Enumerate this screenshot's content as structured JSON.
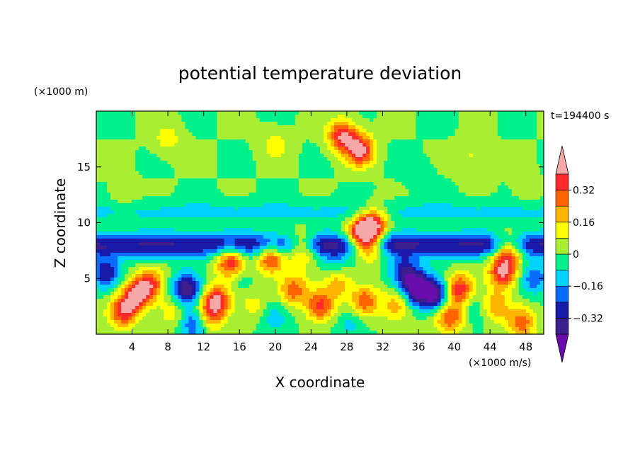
{
  "chart_data": {
    "type": "heatmap",
    "title": "potential temperature deviation",
    "xlabel": "X coordinate",
    "ylabel": "Z coordinate",
    "x_unit": "(×1000 m/s)",
    "y_unit": "(×1000 m)",
    "time_label": "t=194400 s",
    "xlim": [
      0,
      50
    ],
    "ylim": [
      0,
      20
    ],
    "x_ticks": [
      4,
      8,
      12,
      16,
      20,
      24,
      28,
      32,
      36,
      40,
      44,
      48
    ],
    "y_ticks": [
      5,
      10,
      15
    ],
    "colorbar": {
      "levels": [
        -0.4,
        -0.32,
        -0.24,
        -0.16,
        -0.08,
        0,
        0.08,
        0.16,
        0.24,
        0.32,
        0.4
      ],
      "labels": [
        "0.32",
        "0.16",
        "0",
        "-0.16",
        "-0.32"
      ],
      "label_values": [
        0.32,
        0.16,
        0,
        -0.16,
        -0.32
      ],
      "colors": [
        "#6a0dad",
        "#3c1e8c",
        "#1a1aa8",
        "#0a6cff",
        "#00d2ff",
        "#00f08c",
        "#a8ee32",
        "#ffff00",
        "#ffb400",
        "#ff6400",
        "#ff2a2a",
        "#f5a8a8"
      ],
      "extend": "both"
    },
    "anomalies": [
      {
        "x": 4.5,
        "z": 3.5,
        "v": 0.4
      },
      {
        "x": 3.0,
        "z": 2.0,
        "v": 0.35
      },
      {
        "x": 6.0,
        "z": 4.5,
        "v": 0.3
      },
      {
        "x": 13.5,
        "z": 3.0,
        "v": 0.42
      },
      {
        "x": 15.0,
        "z": 6.5,
        "v": 0.4
      },
      {
        "x": 12.5,
        "z": 1.5,
        "v": 0.25
      },
      {
        "x": 19.5,
        "z": 6.8,
        "v": 0.38
      },
      {
        "x": 23.0,
        "z": 7.8,
        "v": 0.35
      },
      {
        "x": 22.0,
        "z": 4.0,
        "v": 0.3
      },
      {
        "x": 25.0,
        "z": 2.5,
        "v": 0.36
      },
      {
        "x": 27.0,
        "z": 4.5,
        "v": 0.2
      },
      {
        "x": 30.5,
        "z": 8.0,
        "v": 0.42
      },
      {
        "x": 31.0,
        "z": 10.0,
        "v": 0.4
      },
      {
        "x": 29.5,
        "z": 9.0,
        "v": 0.4
      },
      {
        "x": 30.0,
        "z": 3.0,
        "v": 0.3
      },
      {
        "x": 33.5,
        "z": 2.5,
        "v": 0.22
      },
      {
        "x": 40.5,
        "z": 4.0,
        "v": 0.4
      },
      {
        "x": 39.5,
        "z": 1.5,
        "v": 0.32
      },
      {
        "x": 45.5,
        "z": 5.5,
        "v": 0.4
      },
      {
        "x": 46.0,
        "z": 7.5,
        "v": 0.4
      },
      {
        "x": 44.5,
        "z": 2.5,
        "v": 0.25
      },
      {
        "x": 47.5,
        "z": 1.0,
        "v": 0.28
      },
      {
        "x": 17.5,
        "z": 2.5,
        "v": 0.12
      },
      {
        "x": 8.5,
        "z": 2.0,
        "v": 0.15
      },
      {
        "x": 10.0,
        "z": 4.0,
        "v": -0.4
      },
      {
        "x": 36.0,
        "z": 4.0,
        "v": -0.45
      },
      {
        "x": 38.0,
        "z": 3.5,
        "v": -0.4
      },
      {
        "x": 34.5,
        "z": 5.5,
        "v": -0.35
      },
      {
        "x": 11.0,
        "z": 1.0,
        "v": -0.3
      },
      {
        "x": 1.0,
        "z": 5.5,
        "v": -0.3
      },
      {
        "x": 20.0,
        "z": 1.5,
        "v": -0.15
      },
      {
        "x": 28.5,
        "z": 1.0,
        "v": -0.12
      },
      {
        "x": 26.5,
        "z": 6.5,
        "v": -0.1
      },
      {
        "x": 49.0,
        "z": 5.0,
        "v": -0.22
      },
      {
        "x": 16.0,
        "z": 5.0,
        "v": -0.08
      },
      {
        "x": 42.5,
        "z": 2.5,
        "v": -0.1
      },
      {
        "x": 8.0,
        "z": 17.5,
        "v": 0.12
      },
      {
        "x": 20.0,
        "z": 17.0,
        "v": 0.12
      },
      {
        "x": 42.0,
        "z": 16.0,
        "v": 0.1
      },
      {
        "x": 3.0,
        "z": 12.0,
        "v": 0.08
      },
      {
        "x": 36.0,
        "z": 14.5,
        "v": -0.06
      },
      {
        "x": 48.0,
        "z": 12.5,
        "v": 0.06
      },
      {
        "x": 29.5,
        "z": 16.5,
        "v": 0.42
      },
      {
        "x": 27.5,
        "z": 17.8,
        "v": 0.4
      }
    ],
    "dipole_band": {
      "z_center": 8.0,
      "amplitude": -0.32,
      "above_z": 11.0,
      "above_amplitude": -0.1
    }
  }
}
